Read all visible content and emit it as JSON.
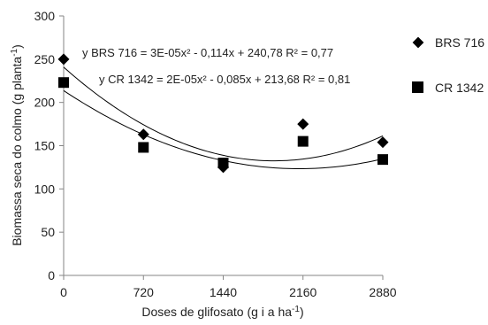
{
  "chart_data": {
    "type": "scatter",
    "xlabel": "Doses de glifosato (g i a ha",
    "xlabel_sup": "-1",
    "xlabel_end": ")",
    "ylabel": "Biomassa seca do colmo (g planta",
    "ylabel_sup": "-1",
    "ylabel_end": ")",
    "x_ticks": [
      0,
      720,
      1440,
      2160,
      2880
    ],
    "y_ticks": [
      0,
      50,
      100,
      150,
      200,
      250,
      300
    ],
    "xlim": [
      0,
      2880
    ],
    "ylim": [
      0,
      300
    ],
    "grid": false,
    "legend_position": "right",
    "series": [
      {
        "name": "BRS 716",
        "marker": "diamond",
        "color": "#000000",
        "x": [
          0,
          720,
          1440,
          2160,
          2880
        ],
        "y": [
          250,
          163,
          125,
          175,
          154
        ],
        "trendline": {
          "a": 3e-05,
          "b": -0.114,
          "c": 240.78
        },
        "equation_label": "y BRS 716 = 3E-05x² - 0,114x + 240,78 R² = 0,77"
      },
      {
        "name": "CR 1342",
        "marker": "square",
        "color": "#000000",
        "x": [
          0,
          720,
          1440,
          2160,
          2880
        ],
        "y": [
          223,
          148,
          130,
          155,
          134
        ],
        "trendline": {
          "a": 2e-05,
          "b": -0.085,
          "c": 213.68
        },
        "equation_label": "y CR 1342 = 2E-05x² - 0,085x + 213,68 R² = 0,81"
      }
    ]
  }
}
